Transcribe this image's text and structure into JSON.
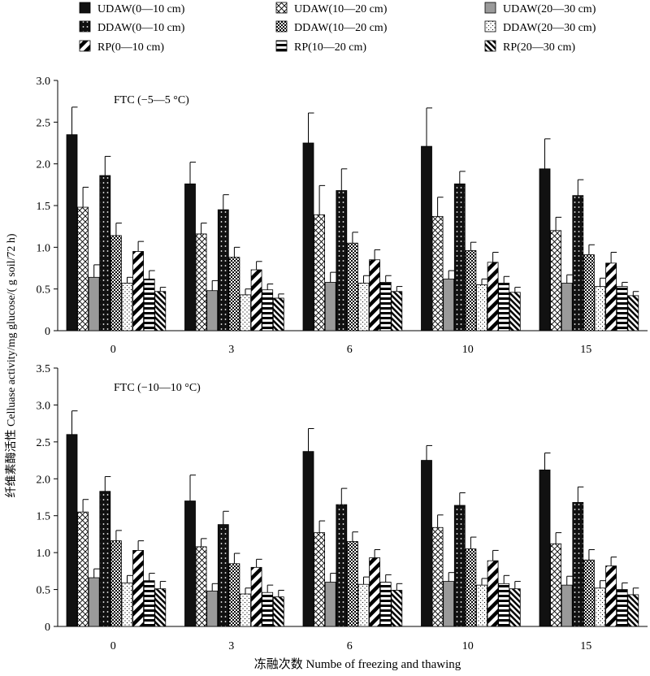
{
  "legend": {
    "entries": [
      {
        "label": "UDAW(0—10 cm)",
        "pattern": "solid-black"
      },
      {
        "label": "UDAW(10—20 cm)",
        "pattern": "crosshatch"
      },
      {
        "label": "UDAW(20—30 cm)",
        "pattern": "solid-gray"
      },
      {
        "label": "DDAW(0—10 cm)",
        "pattern": "white-dots-on-black"
      },
      {
        "label": "DDAW(10—20 cm)",
        "pattern": "checker-dots"
      },
      {
        "label": "DDAW(20—30 cm)",
        "pattern": "sparse-dots"
      },
      {
        "label": "RP(0—10 cm)",
        "pattern": "bold-diagonal-down"
      },
      {
        "label": "RP(10—20 cm)",
        "pattern": "horizontal-stripes"
      },
      {
        "label": "RP(20—30 cm)",
        "pattern": "dense-diagonal-up"
      }
    ]
  },
  "y_axis_label": "纤维素酶活性  Celluase activity/mg glucose/( g soil/72 h)",
  "x_axis_label": "冻融次数  Numbe of freezing and thawing",
  "chart_data": [
    {
      "type": "bar",
      "annotation": "FTC (−5—5 °C)",
      "categories": [
        "0",
        "3",
        "6",
        "10",
        "15"
      ],
      "ylim": [
        0,
        3.0
      ],
      "yticks": [
        "0",
        "0.5",
        "1.0",
        "1.5",
        "2.0",
        "2.5",
        "3.0"
      ],
      "legend_position": "top",
      "series": [
        {
          "name": "UDAW(0—10 cm)",
          "values": [
            2.35,
            1.76,
            2.25,
            2.21,
            1.94
          ],
          "errors": [
            0.33,
            0.26,
            0.36,
            0.46,
            0.36
          ]
        },
        {
          "name": "UDAW(10—20 cm)",
          "values": [
            1.48,
            1.16,
            1.39,
            1.37,
            1.2
          ],
          "errors": [
            0.24,
            0.13,
            0.35,
            0.23,
            0.16
          ]
        },
        {
          "name": "UDAW(20—30 cm)",
          "values": [
            0.64,
            0.48,
            0.58,
            0.62,
            0.57
          ],
          "errors": [
            0.15,
            0.12,
            0.12,
            0.1,
            0.1
          ]
        },
        {
          "name": "DDAW(0—10 cm)",
          "values": [
            1.86,
            1.45,
            1.68,
            1.76,
            1.62
          ],
          "errors": [
            0.23,
            0.18,
            0.26,
            0.15,
            0.19
          ]
        },
        {
          "name": "DDAW(10—20 cm)",
          "values": [
            1.14,
            0.88,
            1.05,
            0.96,
            0.91
          ],
          "errors": [
            0.15,
            0.12,
            0.13,
            0.1,
            0.12
          ]
        },
        {
          "name": "DDAW(20—30 cm)",
          "values": [
            0.57,
            0.43,
            0.57,
            0.55,
            0.53
          ],
          "errors": [
            0.07,
            0.07,
            0.09,
            0.07,
            0.1
          ]
        },
        {
          "name": "RP(0—10 cm)",
          "values": [
            0.95,
            0.73,
            0.85,
            0.82,
            0.81
          ],
          "errors": [
            0.12,
            0.1,
            0.12,
            0.12,
            0.13
          ]
        },
        {
          "name": "RP(10—20 cm)",
          "values": [
            0.62,
            0.49,
            0.58,
            0.57,
            0.53
          ],
          "errors": [
            0.1,
            0.07,
            0.08,
            0.08,
            0.05
          ]
        },
        {
          "name": "RP(20—30 cm)",
          "values": [
            0.47,
            0.39,
            0.47,
            0.46,
            0.42
          ],
          "errors": [
            0.05,
            0.05,
            0.06,
            0.06,
            0.05
          ]
        }
      ]
    },
    {
      "type": "bar",
      "annotation": "FTC (−10—10 °C)",
      "categories": [
        "0",
        "3",
        "6",
        "10",
        "15"
      ],
      "ylim": [
        0,
        3.5
      ],
      "yticks": [
        "0",
        "0.5",
        "1.0",
        "1.5",
        "2.0",
        "2.5",
        "3.0",
        "3.5"
      ],
      "series": [
        {
          "name": "UDAW(0—10 cm)",
          "values": [
            2.6,
            1.7,
            2.37,
            2.25,
            2.12
          ],
          "errors": [
            0.32,
            0.35,
            0.31,
            0.2,
            0.23
          ]
        },
        {
          "name": "UDAW(10—20 cm)",
          "values": [
            1.55,
            1.08,
            1.27,
            1.34,
            1.12
          ],
          "errors": [
            0.17,
            0.11,
            0.16,
            0.17,
            0.15
          ]
        },
        {
          "name": "UDAW(20—30 cm)",
          "values": [
            0.66,
            0.48,
            0.6,
            0.61,
            0.56
          ],
          "errors": [
            0.12,
            0.1,
            0.12,
            0.12,
            0.12
          ]
        },
        {
          "name": "DDAW(0—10 cm)",
          "values": [
            1.83,
            1.38,
            1.65,
            1.64,
            1.68
          ],
          "errors": [
            0.2,
            0.18,
            0.22,
            0.17,
            0.21
          ]
        },
        {
          "name": "DDAW(10—20 cm)",
          "values": [
            1.16,
            0.85,
            1.15,
            1.05,
            0.9
          ],
          "errors": [
            0.14,
            0.14,
            0.13,
            0.16,
            0.14
          ]
        },
        {
          "name": "DDAW(20—30 cm)",
          "values": [
            0.59,
            0.44,
            0.57,
            0.56,
            0.52
          ],
          "errors": [
            0.1,
            0.08,
            0.1,
            0.09,
            0.1
          ]
        },
        {
          "name": "RP(0—10 cm)",
          "values": [
            1.03,
            0.8,
            0.93,
            0.89,
            0.82
          ],
          "errors": [
            0.13,
            0.11,
            0.11,
            0.14,
            0.12
          ]
        },
        {
          "name": "RP(10—20 cm)",
          "values": [
            0.62,
            0.46,
            0.6,
            0.58,
            0.5
          ],
          "errors": [
            0.1,
            0.1,
            0.1,
            0.11,
            0.09
          ]
        },
        {
          "name": "RP(20—30 cm)",
          "values": [
            0.51,
            0.4,
            0.49,
            0.51,
            0.43
          ],
          "errors": [
            0.1,
            0.09,
            0.09,
            0.1,
            0.09
          ]
        }
      ]
    }
  ]
}
